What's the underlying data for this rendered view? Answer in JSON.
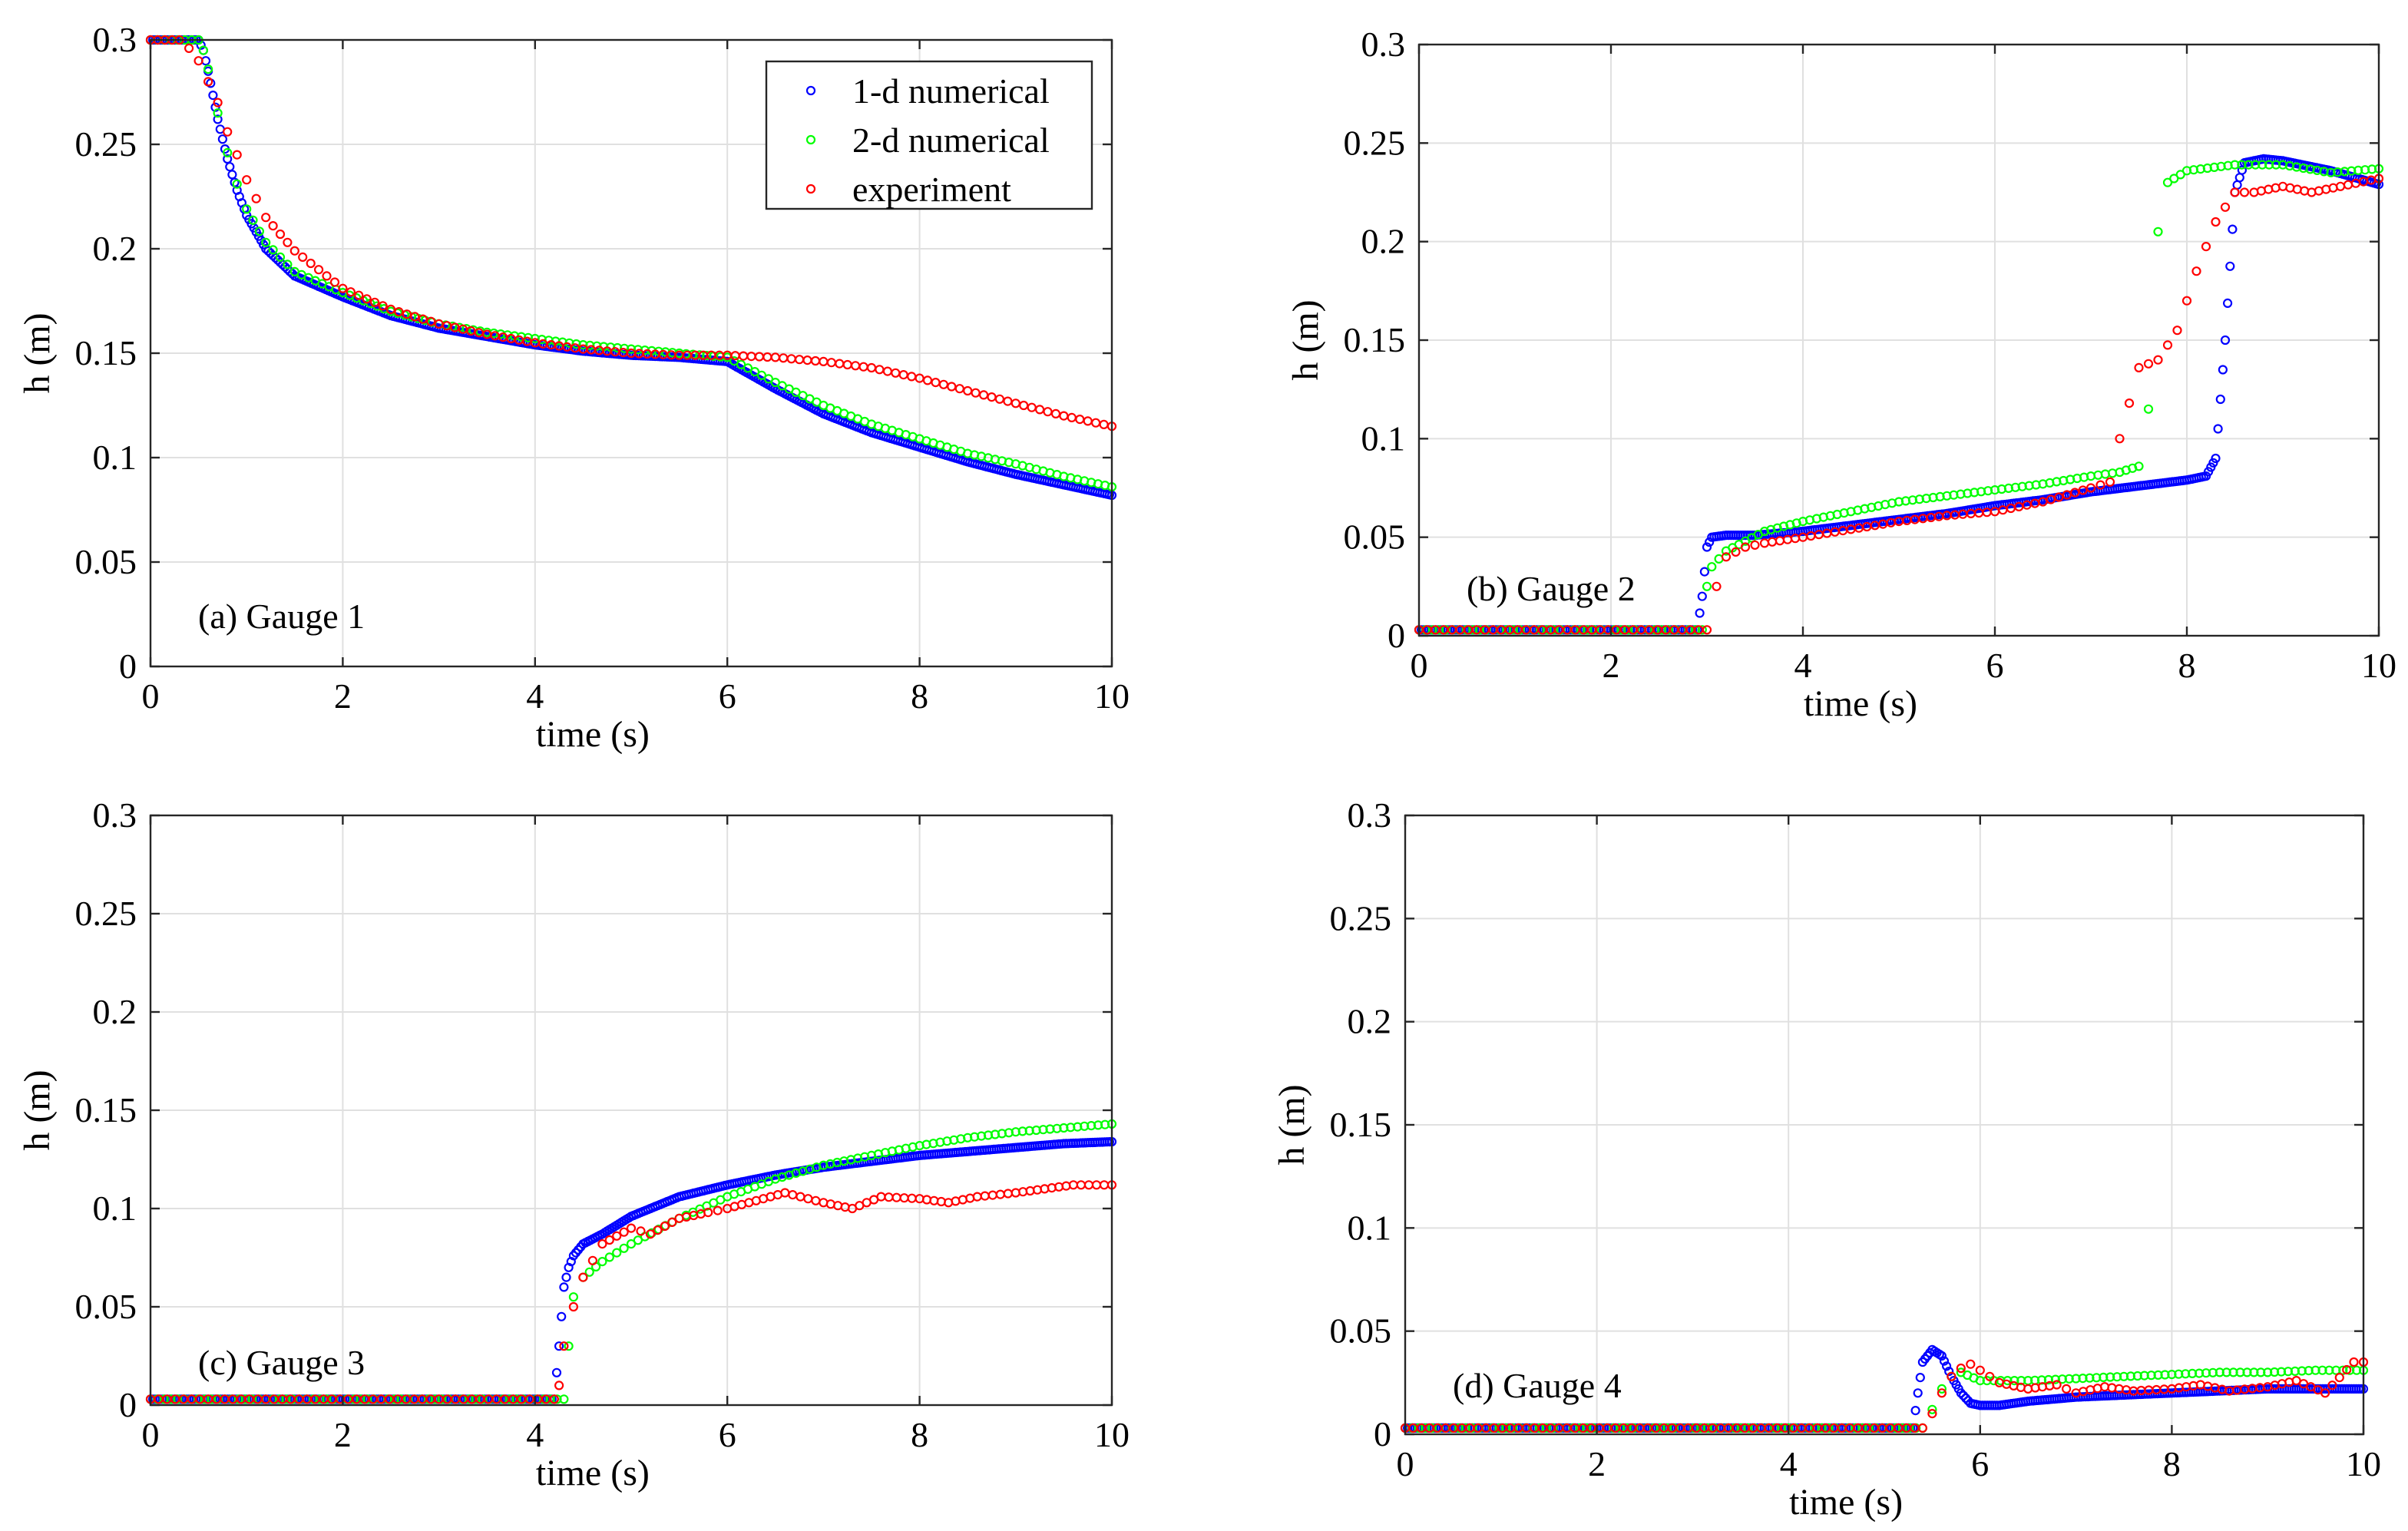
{
  "figure": {
    "x_axis_label": "time (s)",
    "y_axis_label": "h (m)",
    "legend": [
      "1-d numerical",
      "2-d numerical",
      "experiment"
    ],
    "colors": {
      "one_d": "#0000ff",
      "two_d": "#00ff00",
      "experiment": "#ff0000"
    }
  },
  "chart_data": [
    {
      "type": "scatter",
      "title": "(a) Gauge 1",
      "xlabel": "time (s)",
      "ylabel": "h (m)",
      "xlim": [
        0,
        10
      ],
      "ylim": [
        0,
        0.3
      ],
      "xticks": [
        0,
        2,
        4,
        6,
        8,
        10
      ],
      "yticks": [
        0,
        0.05,
        0.1,
        0.15,
        0.2,
        0.25,
        0.3
      ],
      "xtick_labels": [
        "0",
        "2",
        "4",
        "6",
        "8",
        "10"
      ],
      "ytick_labels": [
        "0",
        "0.05",
        "0.1",
        "0.15",
        "0.2",
        "0.25",
        "0.3"
      ],
      "grid": true,
      "legend_position": "top-right",
      "series": [
        {
          "name": "1-d numerical",
          "x": [
            0,
            0.5,
            0.55,
            0.6,
            0.7,
            0.8,
            0.9,
            1.0,
            1.2,
            1.5,
            2,
            2.5,
            3,
            3.5,
            4,
            4.5,
            5,
            5.5,
            6,
            6.5,
            7,
            7.5,
            8,
            8.5,
            9,
            9.5,
            10
          ],
          "y": [
            0.3,
            0.3,
            0.295,
            0.285,
            0.262,
            0.243,
            0.228,
            0.216,
            0.2,
            0.187,
            0.177,
            0.168,
            0.162,
            0.158,
            0.154,
            0.151,
            0.149,
            0.148,
            0.146,
            0.133,
            0.121,
            0.112,
            0.105,
            0.098,
            0.092,
            0.087,
            0.082
          ]
        },
        {
          "name": "2-d numerical",
          "x": [
            0,
            0.5,
            0.55,
            0.6,
            0.7,
            0.8,
            0.9,
            1.0,
            1.2,
            1.5,
            2,
            2.5,
            3,
            3.5,
            4,
            4.5,
            5,
            5.5,
            6,
            6.5,
            7,
            7.5,
            8,
            8.5,
            9,
            9.5,
            10
          ],
          "y": [
            0.3,
            0.3,
            0.295,
            0.286,
            0.265,
            0.246,
            0.231,
            0.219,
            0.203,
            0.189,
            0.179,
            0.17,
            0.164,
            0.16,
            0.157,
            0.154,
            0.152,
            0.15,
            0.148,
            0.136,
            0.125,
            0.116,
            0.109,
            0.102,
            0.097,
            0.091,
            0.086
          ]
        },
        {
          "name": "experiment",
          "x": [
            0,
            0.3,
            0.4,
            0.5,
            0.6,
            0.7,
            0.8,
            0.9,
            1.0,
            1.2,
            1.5,
            2,
            2.5,
            3,
            3.5,
            4,
            4.5,
            5,
            5.5,
            6,
            6.5,
            7,
            7.5,
            8,
            8.5,
            9,
            9.5,
            10
          ],
          "y": [
            0.3,
            0.3,
            0.296,
            0.29,
            0.28,
            0.27,
            0.256,
            0.245,
            0.233,
            0.215,
            0.199,
            0.181,
            0.171,
            0.164,
            0.159,
            0.155,
            0.152,
            0.15,
            0.149,
            0.149,
            0.148,
            0.146,
            0.143,
            0.138,
            0.132,
            0.126,
            0.12,
            0.115
          ]
        }
      ]
    },
    {
      "type": "scatter",
      "title": "(b) Gauge 2",
      "xlabel": "time (s)",
      "ylabel": "h (m)",
      "xlim": [
        0,
        10
      ],
      "ylim": [
        0,
        0.3
      ],
      "xticks": [
        0,
        2,
        4,
        6,
        8,
        10
      ],
      "yticks": [
        0,
        0.05,
        0.1,
        0.15,
        0.2,
        0.25,
        0.3
      ],
      "xtick_labels": [
        "0",
        "2",
        "4",
        "6",
        "8",
        "10"
      ],
      "ytick_labels": [
        "0",
        "0.05",
        "0.1",
        "0.15",
        "0.2",
        "0.25",
        "0.3"
      ],
      "grid": true,
      "series": [
        {
          "name": "1-d numerical",
          "x": [
            0,
            2.9,
            2.95,
            3.0,
            3.05,
            3.2,
            3.5,
            4,
            4.5,
            5,
            5.5,
            6,
            6.5,
            7,
            7.5,
            8,
            8.2,
            8.3,
            8.4,
            8.5,
            8.6,
            8.8,
            9,
            9.5,
            10
          ],
          "y": [
            0.003,
            0.003,
            0.02,
            0.045,
            0.05,
            0.051,
            0.051,
            0.053,
            0.056,
            0.059,
            0.062,
            0.066,
            0.069,
            0.073,
            0.076,
            0.079,
            0.081,
            0.09,
            0.15,
            0.225,
            0.24,
            0.242,
            0.241,
            0.236,
            0.229
          ]
        },
        {
          "name": "2-d numerical",
          "x": [
            0,
            2.95,
            3.0,
            3.05,
            3.2,
            3.4,
            3.6,
            4,
            4.5,
            5,
            5.5,
            6,
            6.5,
            7,
            7.3,
            7.5,
            7.6,
            7.7,
            7.8,
            8,
            8.5,
            9,
            9.5,
            10
          ],
          "y": [
            0.003,
            0.003,
            0.025,
            0.035,
            0.043,
            0.048,
            0.053,
            0.058,
            0.063,
            0.068,
            0.071,
            0.074,
            0.077,
            0.081,
            0.083,
            0.086,
            0.115,
            0.205,
            0.23,
            0.236,
            0.239,
            0.239,
            0.235,
            0.237
          ]
        },
        {
          "name": "experiment",
          "x": [
            0,
            3.0,
            3.1,
            3.2,
            3.4,
            3.6,
            4,
            4.5,
            5,
            5.5,
            6,
            6.5,
            7,
            7.2,
            7.3,
            7.4,
            7.5,
            7.7,
            7.9,
            8.1,
            8.3,
            8.5,
            8.7,
            9,
            9.3,
            9.6,
            10
          ],
          "y": [
            0.003,
            0.003,
            0.025,
            0.04,
            0.045,
            0.047,
            0.05,
            0.054,
            0.058,
            0.061,
            0.063,
            0.068,
            0.075,
            0.078,
            0.1,
            0.118,
            0.136,
            0.14,
            0.155,
            0.185,
            0.21,
            0.225,
            0.225,
            0.228,
            0.225,
            0.228,
            0.232
          ]
        }
      ]
    },
    {
      "type": "scatter",
      "title": "(c) Gauge 3",
      "xlabel": "time (s)",
      "ylabel": "h (m)",
      "xlim": [
        0,
        10
      ],
      "ylim": [
        0,
        0.3
      ],
      "xticks": [
        0,
        2,
        4,
        6,
        8,
        10
      ],
      "yticks": [
        0,
        0.05,
        0.1,
        0.15,
        0.2,
        0.25,
        0.3
      ],
      "xtick_labels": [
        "0",
        "2",
        "4",
        "6",
        "8",
        "10"
      ],
      "ytick_labels": [
        "0",
        "0.05",
        "0.1",
        "0.15",
        "0.2",
        "0.25",
        "0.3"
      ],
      "grid": true,
      "series": [
        {
          "name": "1-d numerical",
          "x": [
            0,
            4.2,
            4.25,
            4.3,
            4.35,
            4.4,
            4.5,
            4.7,
            5,
            5.5,
            6,
            6.5,
            7,
            7.5,
            8,
            8.5,
            9,
            9.5,
            10
          ],
          "y": [
            0.003,
            0.003,
            0.03,
            0.06,
            0.07,
            0.076,
            0.082,
            0.087,
            0.096,
            0.106,
            0.112,
            0.117,
            0.121,
            0.124,
            0.127,
            0.129,
            0.131,
            0.133,
            0.134
          ]
        },
        {
          "name": "2-d numerical",
          "x": [
            0,
            4.3,
            4.35,
            4.4,
            4.5,
            4.7,
            5,
            5.5,
            6,
            6.5,
            7,
            7.5,
            8,
            8.5,
            9,
            9.5,
            10
          ],
          "y": [
            0.003,
            0.003,
            0.03,
            0.055,
            0.065,
            0.073,
            0.082,
            0.095,
            0.106,
            0.115,
            0.122,
            0.127,
            0.132,
            0.136,
            0.139,
            0.141,
            0.143
          ]
        },
        {
          "name": "experiment",
          "x": [
            0,
            4.2,
            4.25,
            4.3,
            4.4,
            4.5,
            4.7,
            5,
            5.2,
            5.5,
            5.8,
            6,
            6.3,
            6.6,
            7,
            7.3,
            7.6,
            8,
            8.3,
            8.6,
            9,
            9.3,
            9.6,
            10
          ],
          "y": [
            0.003,
            0.003,
            0.01,
            0.03,
            0.05,
            0.065,
            0.082,
            0.09,
            0.087,
            0.095,
            0.098,
            0.1,
            0.104,
            0.108,
            0.103,
            0.1,
            0.106,
            0.105,
            0.103,
            0.106,
            0.108,
            0.11,
            0.112,
            0.112
          ]
        }
      ]
    },
    {
      "type": "scatter",
      "title": "(d) Gauge 4",
      "xlabel": "time (s)",
      "ylabel": "h (m)",
      "xlim": [
        0,
        10
      ],
      "ylim": [
        0,
        0.3
      ],
      "xticks": [
        0,
        2,
        4,
        6,
        8,
        10
      ],
      "yticks": [
        0,
        0.05,
        0.1,
        0.15,
        0.2,
        0.25,
        0.3
      ],
      "xtick_labels": [
        "0",
        "2",
        "4",
        "6",
        "8",
        "10"
      ],
      "ytick_labels": [
        "0",
        "0.05",
        "0.1",
        "0.15",
        "0.2",
        "0.25",
        "0.3"
      ],
      "grid": true,
      "series": [
        {
          "name": "1-d numerical",
          "x": [
            0,
            5.3,
            5.35,
            5.4,
            5.5,
            5.6,
            5.7,
            5.8,
            5.9,
            6.0,
            6.2,
            6.5,
            7,
            7.5,
            8,
            8.5,
            9,
            9.5,
            10
          ],
          "y": [
            0.003,
            0.003,
            0.02,
            0.035,
            0.041,
            0.038,
            0.028,
            0.02,
            0.015,
            0.014,
            0.014,
            0.016,
            0.018,
            0.019,
            0.02,
            0.021,
            0.022,
            0.022,
            0.022
          ]
        },
        {
          "name": "2-d numerical",
          "x": [
            0,
            5.4,
            5.5,
            5.6,
            5.7,
            5.8,
            6.0,
            6.5,
            7,
            7.5,
            8,
            8.5,
            9,
            9.5,
            10
          ],
          "y": [
            0.003,
            0.003,
            0.012,
            0.022,
            0.028,
            0.03,
            0.026,
            0.026,
            0.027,
            0.028,
            0.029,
            0.03,
            0.03,
            0.031,
            0.031
          ]
        },
        {
          "name": "experiment",
          "x": [
            0,
            5.4,
            5.5,
            5.6,
            5.7,
            5.8,
            5.9,
            6.0,
            6.2,
            6.5,
            6.8,
            7,
            7.3,
            7.6,
            8,
            8.3,
            8.6,
            9,
            9.3,
            9.6,
            9.9,
            10
          ],
          "y": [
            0.003,
            0.003,
            0.01,
            0.02,
            0.028,
            0.032,
            0.034,
            0.031,
            0.025,
            0.022,
            0.024,
            0.02,
            0.023,
            0.021,
            0.022,
            0.024,
            0.021,
            0.023,
            0.026,
            0.02,
            0.035,
            0.035
          ]
        }
      ]
    }
  ]
}
